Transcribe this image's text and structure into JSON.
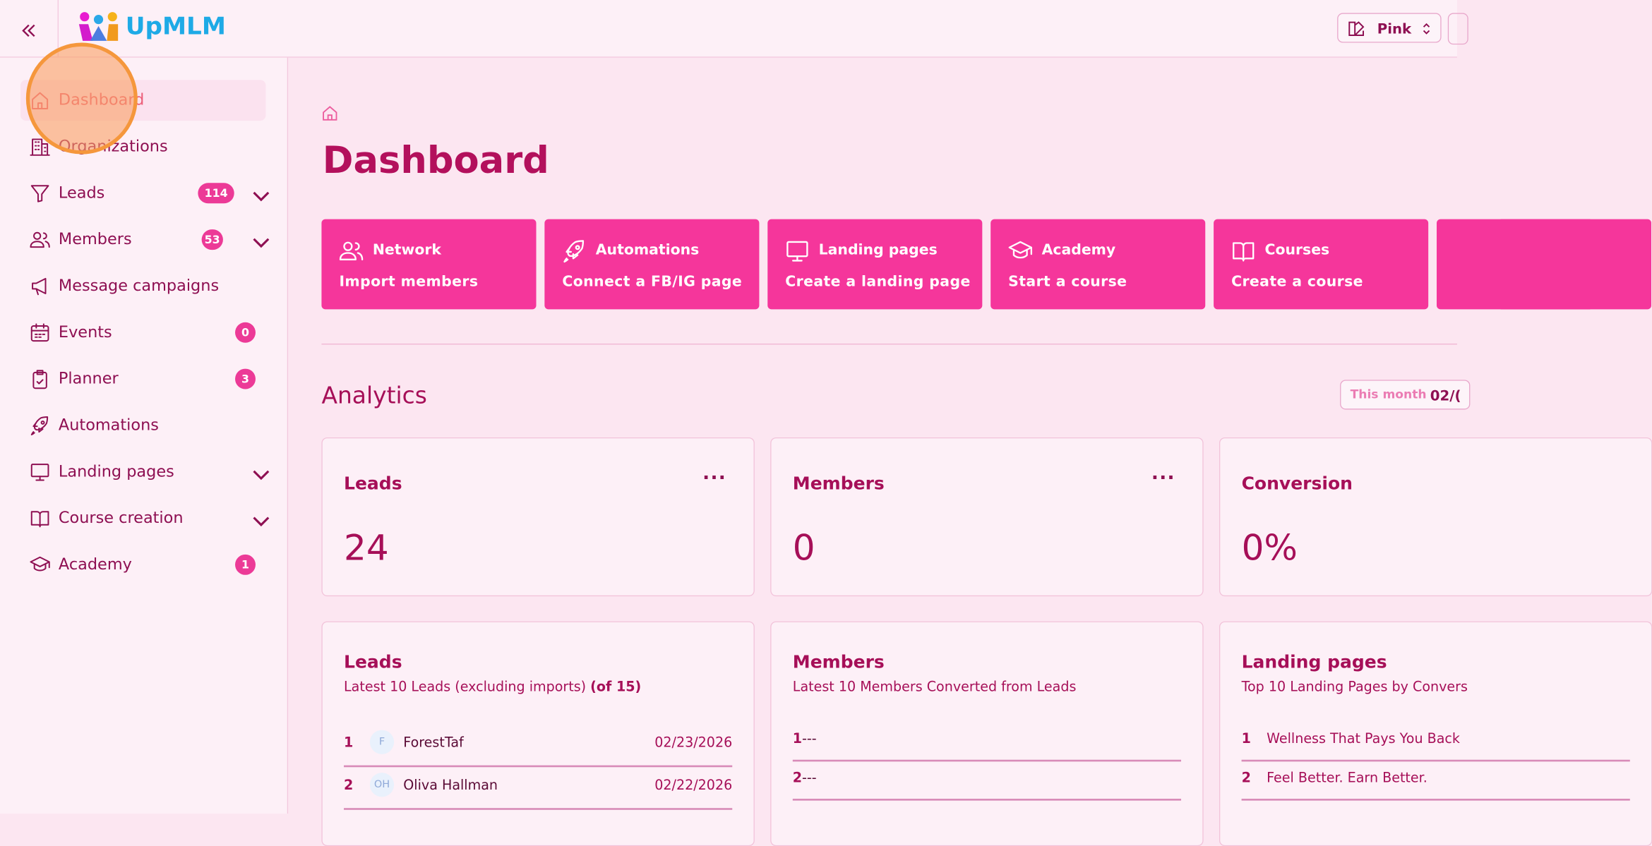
{
  "app": {
    "logo_text": "UpMLM",
    "theme_select": "Pink"
  },
  "sidebar": {
    "items": [
      {
        "label": "Dashboard",
        "icon": "home-icon",
        "active": true
      },
      {
        "label": "Organizations",
        "icon": "building-icon"
      },
      {
        "label": "Leads",
        "icon": "funnel-icon",
        "badge": "114",
        "expandable": true
      },
      {
        "label": "Members",
        "icon": "users-icon",
        "badge": "53",
        "expandable": true
      },
      {
        "label": "Message campaigns",
        "icon": "megaphone-icon"
      },
      {
        "label": "Events",
        "icon": "calendar-icon",
        "badge": "0"
      },
      {
        "label": "Planner",
        "icon": "clipboard-icon",
        "badge": "3"
      },
      {
        "label": "Automations",
        "icon": "rocket-icon"
      },
      {
        "label": "Landing pages",
        "icon": "monitor-icon",
        "expandable": true
      },
      {
        "label": "Course creation",
        "icon": "book-icon",
        "expandable": true
      },
      {
        "label": "Academy",
        "icon": "graduation-cap-icon",
        "badge": "1"
      }
    ]
  },
  "main": {
    "title": "Dashboard",
    "quick_actions": [
      {
        "title": "Network",
        "subtitle": "Import members",
        "icon": "users-icon"
      },
      {
        "title": "Automations",
        "subtitle": "Connect a FB/IG page",
        "icon": "rocket-icon"
      },
      {
        "title": "Landing pages",
        "subtitle": "Create a landing page",
        "icon": "monitor-icon"
      },
      {
        "title": "Academy",
        "subtitle": "Start a course",
        "icon": "graduation-cap-icon"
      },
      {
        "title": "Courses",
        "subtitle": "Create a course",
        "icon": "book-icon"
      }
    ],
    "analytics": {
      "title": "Analytics",
      "range_label": "This month",
      "range_value": "02/("
    },
    "stats": [
      {
        "title": "Leads",
        "value": "24"
      },
      {
        "title": "Members",
        "value": "0"
      },
      {
        "title": "Conversion",
        "value": "0%"
      }
    ],
    "lists": {
      "leads": {
        "title": "Leads",
        "subtitle": "Latest 10 Leads (excluding imports)",
        "count": "(of 15)",
        "rows": [
          {
            "n": "1",
            "initials": "F",
            "name": "ForestTaf",
            "date": "02/23/2026"
          },
          {
            "n": "2",
            "initials": "OH",
            "name": "Oliva Hallman",
            "date": "02/22/2026"
          }
        ]
      },
      "members": {
        "title": "Members",
        "subtitle": "Latest 10 Members Converted from Leads",
        "rows": [
          {
            "n": "1",
            "name": "---"
          },
          {
            "n": "2",
            "name": "---"
          }
        ]
      },
      "landing": {
        "title": "Landing pages",
        "subtitle": "Top 10 Landing Pages by Convers",
        "rows": [
          {
            "n": "1",
            "name": "Wellness That Pays You Back"
          },
          {
            "n": "2",
            "name": "Feel Better. Earn Better."
          }
        ]
      }
    }
  },
  "colors": {
    "accent": "#f5369b",
    "text": "#a60f58",
    "background": "#fce6f1"
  }
}
